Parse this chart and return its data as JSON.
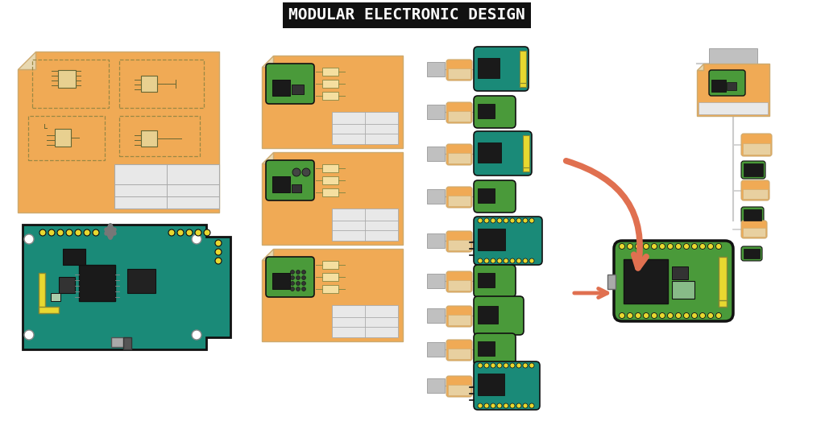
{
  "title": "MODULAR ELECTRONIC DESIGN",
  "title_bg": "#111111",
  "title_color": "#ffffff",
  "bg_color": "#ffffff",
  "teal": "#1a8a78",
  "green": "#4a9a3a",
  "orange": "#f0aa55",
  "yellow": "#e8d830",
  "gray_light": "#bbbbbb",
  "dark": "#1a1a1a",
  "arrow_color": "#e07050",
  "gray_arrow": "#888888",
  "schematic_bg": "#f5dfa0",
  "fold_color": "#e8d8b0"
}
